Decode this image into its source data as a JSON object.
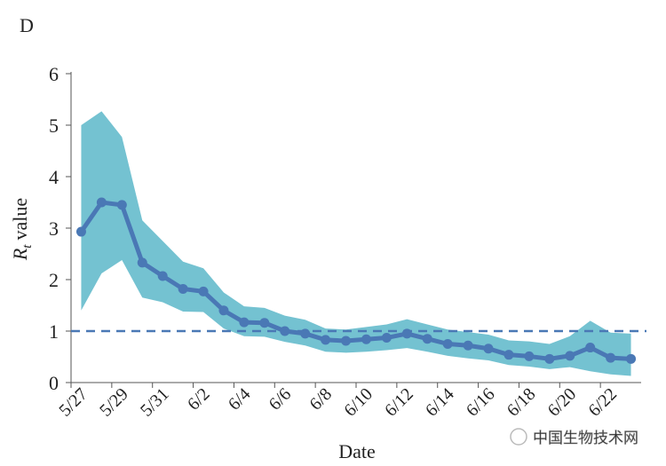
{
  "panel_label": "D",
  "watermark": "中国生物技术网",
  "chart_data": {
    "type": "line",
    "x_label": "Date",
    "y_label": {
      "symbol": "R",
      "subscript": "t",
      "text": "value"
    },
    "categories": [
      "5/27",
      null,
      "5/29",
      null,
      "5/31",
      null,
      "6/2",
      null,
      "6/4",
      null,
      "6/6",
      null,
      "6/8",
      null,
      "6/10",
      null,
      "6/12",
      null,
      "6/14",
      null,
      "6/16",
      null,
      "6/18",
      null,
      "6/20",
      null,
      "6/22",
      null
    ],
    "values": [
      2.93,
      3.5,
      3.45,
      2.33,
      2.07,
      1.82,
      1.77,
      1.4,
      1.17,
      1.16,
      1.0,
      0.95,
      0.83,
      0.81,
      0.84,
      0.87,
      0.95,
      0.85,
      0.75,
      0.72,
      0.66,
      0.54,
      0.51,
      0.46,
      0.52,
      0.68,
      0.48,
      0.46
    ],
    "upper": [
      5.0,
      5.27,
      4.77,
      3.15,
      2.75,
      2.35,
      2.22,
      1.75,
      1.48,
      1.45,
      1.3,
      1.22,
      1.05,
      1.03,
      1.08,
      1.13,
      1.23,
      1.13,
      1.03,
      0.98,
      0.93,
      0.82,
      0.8,
      0.75,
      0.9,
      1.2,
      0.97,
      0.95
    ],
    "lower": [
      1.4,
      2.12,
      2.38,
      1.65,
      1.56,
      1.38,
      1.37,
      1.05,
      0.9,
      0.89,
      0.79,
      0.72,
      0.6,
      0.58,
      0.6,
      0.63,
      0.67,
      0.6,
      0.52,
      0.47,
      0.43,
      0.34,
      0.31,
      0.26,
      0.3,
      0.22,
      0.16,
      0.13
    ],
    "color": "#4a78b5",
    "band_color": "#74c2d1",
    "reference_line": 1,
    "ylim": [
      0,
      6
    ],
    "yticks": [
      0,
      1,
      2,
      3,
      4,
      5,
      6
    ]
  }
}
